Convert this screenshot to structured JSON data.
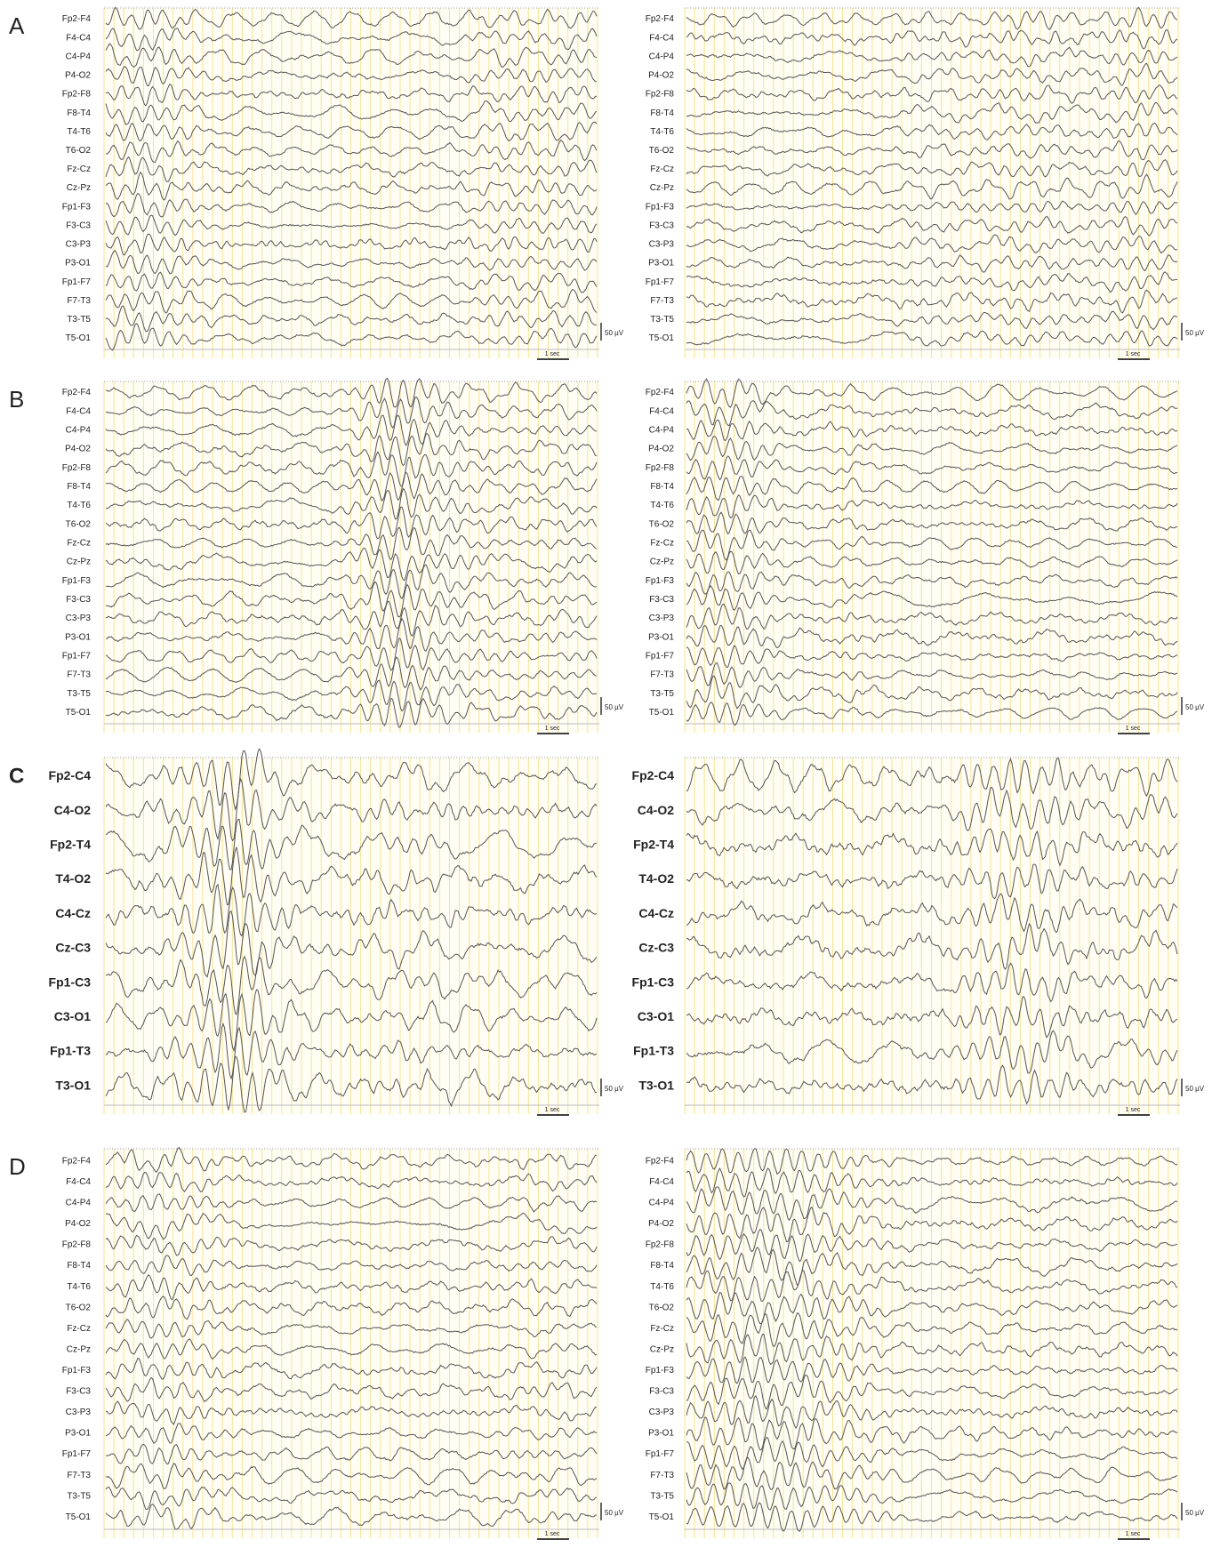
{
  "panels": [
    {
      "label": "A",
      "recordings": [
        {
          "channels": [
            "Fp2-F4",
            "F4-C4",
            "C4-P4",
            "P4-O2",
            "Fp2-F8",
            "F8-T4",
            "T4-T6",
            "T6-O2",
            "Fz-Cz",
            "Cz-Pz",
            "Fp1-F3",
            "F3-C3",
            "C3-P3",
            "P3-O1",
            "Fp1-F7",
            "F7-T3",
            "T3-T5",
            "T5-O1"
          ],
          "amplitude_scale": "50 µV",
          "time_scale": "1 sec"
        },
        {
          "channels": [
            "Fp2-F4",
            "F4-C4",
            "C4-P4",
            "P4-O2",
            "Fp2-F8",
            "F8-T4",
            "T4-T6",
            "T6-O2",
            "Fz-Cz",
            "Cz-Pz",
            "Fp1-F3",
            "F3-C3",
            "C3-P3",
            "P3-O1",
            "Fp1-F7",
            "F7-T3",
            "T3-T5",
            "T5-O1"
          ],
          "amplitude_scale": "50 µV",
          "time_scale": "1 sec"
        }
      ]
    },
    {
      "label": "B",
      "recordings": [
        {
          "channels": [
            "Fp2-F4",
            "F4-C4",
            "C4-P4",
            "P4-O2",
            "Fp2-F8",
            "F8-T4",
            "T4-T6",
            "T6-O2",
            "Fz-Cz",
            "Cz-Pz",
            "Fp1-F3",
            "F3-C3",
            "C3-P3",
            "P3-O1",
            "Fp1-F7",
            "F7-T3",
            "T3-T5",
            "T5-O1"
          ],
          "amplitude_scale": "50 µV",
          "time_scale": "1 sec"
        },
        {
          "channels": [
            "Fp2-F4",
            "F4-C4",
            "C4-P4",
            "P4-O2",
            "Fp2-F8",
            "F8-T4",
            "T4-T6",
            "T6-O2",
            "Fz-Cz",
            "Cz-Pz",
            "Fp1-F3",
            "F3-C3",
            "C3-P3",
            "P3-O1",
            "Fp1-F7",
            "F7-T3",
            "T3-T5",
            "T5-O1"
          ],
          "amplitude_scale": "50 µV",
          "time_scale": "1 sec"
        }
      ]
    },
    {
      "label": "C",
      "recordings": [
        {
          "channels": [
            "Fp2-C4",
            "C4-O2",
            "Fp2-T4",
            "T4-O2",
            "C4-Cz",
            "Cz-C3",
            "Fp1-C3",
            "C3-O1",
            "Fp1-T3",
            "T3-O1"
          ],
          "amplitude_scale": "50 µV",
          "time_scale": "1 sec"
        },
        {
          "channels": [
            "Fp2-C4",
            "C4-O2",
            "Fp2-T4",
            "T4-O2",
            "C4-Cz",
            "Cz-C3",
            "Fp1-C3",
            "C3-O1",
            "Fp1-T3",
            "T3-O1"
          ],
          "amplitude_scale": "50 µV",
          "time_scale": "1 sec"
        }
      ]
    },
    {
      "label": "D",
      "recordings": [
        {
          "channels": [
            "Fp2-F4",
            "F4-C4",
            "C4-P4",
            "P4-O2",
            "Fp2-F8",
            "F8-T4",
            "T4-T6",
            "T6-O2",
            "Fz-Cz",
            "Cz-Pz",
            "Fp1-F3",
            "F3-C3",
            "C3-P3",
            "P3-O1",
            "Fp1-F7",
            "F7-T3",
            "T3-T5",
            "T5-O1"
          ],
          "amplitude_scale": "50 µV",
          "time_scale": "1 sec"
        },
        {
          "channels": [
            "Fp2-F4",
            "F4-C4",
            "C4-P4",
            "P4-O2",
            "Fp2-F8",
            "F8-T4",
            "T4-T6",
            "T6-O2",
            "Fz-Cz",
            "Cz-Pz",
            "Fp1-F3",
            "F3-C3",
            "C3-P3",
            "P3-O1",
            "Fp1-F7",
            "F7-T3",
            "T3-T5",
            "T5-O1"
          ],
          "amplitude_scale": "50 µV",
          "time_scale": "1 sec"
        }
      ]
    }
  ]
}
